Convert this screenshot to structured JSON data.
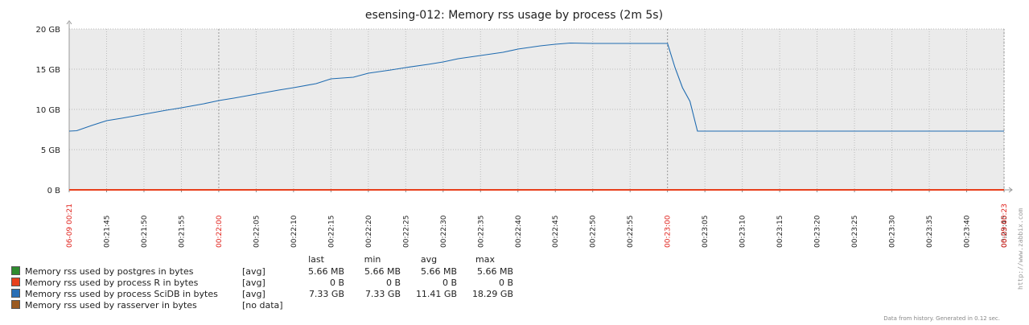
{
  "chart_data": {
    "type": "line",
    "title": "esensing-012: Memory rss usage by process (2m 5s)",
    "y_ticks": [
      "0 B",
      "5 GB",
      "10 GB",
      "15 GB",
      "20 GB"
    ],
    "ylim_gb": [
      0,
      20
    ],
    "x_ticks": [
      "06-09 00:21",
      "00:21:45",
      "00:21:50",
      "00:21:55",
      "00:22:00",
      "00:22:05",
      "00:22:10",
      "00:22:15",
      "00:22:20",
      "00:22:25",
      "00:22:30",
      "00:22:35",
      "00:22:40",
      "00:22:45",
      "00:22:50",
      "00:22:55",
      "00:23:00",
      "00:23:05",
      "00:23:10",
      "00:23:15",
      "00:23:20",
      "00:23:25",
      "00:23:30",
      "00:23:35",
      "00:23:40",
      "00:23:45",
      "06-09 00:23"
    ],
    "x_ticks_red": [
      "06-09 00:21",
      "00:22:00",
      "00:23:00",
      "06-09 00:23"
    ],
    "series": [
      {
        "name": "Memory rss used by process SciDB in bytes",
        "color": "#1f6bb0",
        "x_sec": [
          40,
          41,
          43,
          45,
          47,
          50,
          53,
          55,
          58,
          60,
          62,
          65,
          68,
          70,
          73,
          75,
          78,
          80,
          83,
          85,
          88,
          90,
          92,
          95,
          98,
          100,
          103,
          105,
          107,
          110,
          113,
          115,
          118,
          120,
          121,
          122,
          123,
          124,
          125,
          126,
          130,
          135,
          140,
          145,
          150,
          155,
          160,
          165
        ],
        "y_gb": [
          7.3,
          7.35,
          8.0,
          8.6,
          8.9,
          9.4,
          9.9,
          10.2,
          10.7,
          11.1,
          11.4,
          11.9,
          12.4,
          12.7,
          13.2,
          13.8,
          14.0,
          14.5,
          14.9,
          15.2,
          15.6,
          15.9,
          16.3,
          16.7,
          17.1,
          17.5,
          17.9,
          18.1,
          18.25,
          18.2,
          18.2,
          18.2,
          18.2,
          18.2,
          15.2,
          12.7,
          11.0,
          7.3,
          7.3,
          7.3,
          7.3,
          7.3,
          7.3,
          7.3,
          7.3,
          7.3,
          7.3,
          7.3
        ]
      },
      {
        "name": "Memory rss used by process R in bytes",
        "color": "#e8401c",
        "x_sec": [
          40,
          165
        ],
        "y_gb": [
          0,
          0
        ]
      }
    ],
    "grid": true
  },
  "legend": {
    "headers": [
      "last",
      "min",
      "avg",
      "max"
    ],
    "rows": [
      {
        "color": "#2e8b2e",
        "name": "Memory rss used by postgres in bytes",
        "func": "[avg]",
        "last": "5.66 MB",
        "min": "5.66 MB",
        "avg": "5.66 MB",
        "max": "5.66 MB"
      },
      {
        "color": "#e8401c",
        "name": "Memory rss used by process R in bytes",
        "func": "[avg]",
        "last": "0 B",
        "min": "0 B",
        "avg": "0 B",
        "max": "0 B"
      },
      {
        "color": "#2a6fb5",
        "name": "Memory rss used by process SciDB in bytes",
        "func": "[avg]",
        "last": "7.33 GB",
        "min": "7.33 GB",
        "avg": "11.41 GB",
        "max": "18.29 GB"
      },
      {
        "color": "#9a5a22",
        "name": "Memory rss used by rasserver in bytes",
        "func": "[no data]",
        "last": "",
        "min": "",
        "avg": "",
        "max": ""
      }
    ]
  },
  "footer": "Data from history. Generated in 0.12 sec.",
  "side_url": "http://www.zabbix.com"
}
